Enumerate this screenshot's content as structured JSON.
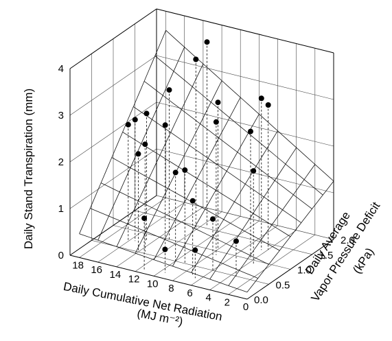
{
  "chart_data": {
    "type": "scatter",
    "subtype": "3d-scatter-with-fitted-surface",
    "title": "",
    "zlabel": "Daily Stand Transpiration (mm)",
    "xlabel": "Daily Cumulative Net Radiation",
    "xlabel_units": "(MJ m⁻²)",
    "ylabel_line1": "Daily Average",
    "ylabel_line2": "Vapor Pressure Deficit",
    "ylabel_line3": "(kPa)",
    "xlim": [
      0,
      19
    ],
    "ylim": [
      0,
      2
    ],
    "zlim": [
      0,
      4
    ],
    "x_ticks": [
      "18",
      "16",
      "14",
      "12",
      "10",
      "8",
      "6",
      "4",
      "2",
      "0"
    ],
    "y_ticks": [
      "0.0",
      "0.5",
      "1.0",
      "1.5",
      "2.0"
    ],
    "z_ticks": [
      "0",
      "1",
      "2",
      "3",
      "4"
    ],
    "grid": true,
    "surface": {
      "model": "z = a + b*x + c*y + d*x*y",
      "a": 0.15,
      "b": 0.02,
      "c": 0.55,
      "d": 0.055,
      "x_grid": [
        0,
        2,
        4,
        6,
        8,
        10,
        12,
        14,
        16,
        18
      ],
      "y_grid": [
        0.0,
        0.25,
        0.5,
        0.75,
        1.0,
        1.25,
        1.5,
        1.75,
        2.0
      ]
    },
    "points": [
      {
        "x": 16,
        "y": 0.7,
        "z": 2.5
      },
      {
        "x": 15.5,
        "y": 0.75,
        "z": 2.6
      },
      {
        "x": 14.5,
        "y": 0.8,
        "z": 2.75
      },
      {
        "x": 14,
        "y": 0.5,
        "z": 2.1
      },
      {
        "x": 13.5,
        "y": 0.55,
        "z": 2.3
      },
      {
        "x": 13,
        "y": 1.0,
        "z": 3.2
      },
      {
        "x": 12.5,
        "y": 0.8,
        "z": 2.6
      },
      {
        "x": 12,
        "y": 1.4,
        "z": 3.65
      },
      {
        "x": 11.5,
        "y": 1.55,
        "z": 3.95
      },
      {
        "x": 11.5,
        "y": 0.1,
        "z": 1.1
      },
      {
        "x": 10,
        "y": 0.5,
        "z": 1.9
      },
      {
        "x": 9,
        "y": 0.5,
        "z": 2.0
      },
      {
        "x": 9.5,
        "y": 0.15,
        "z": 0.5
      },
      {
        "x": 8,
        "y": 1.05,
        "z": 3.15
      },
      {
        "x": 7.5,
        "y": 0.9,
        "z": 2.85
      },
      {
        "x": 7,
        "y": 0.25,
        "z": 1.6
      },
      {
        "x": 6.5,
        "y": 0.2,
        "z": 0.6
      },
      {
        "x": 6,
        "y": 0.5,
        "z": 1.1
      },
      {
        "x": 4.5,
        "y": 1.3,
        "z": 3.25
      },
      {
        "x": 4,
        "y": 1.35,
        "z": 3.1
      },
      {
        "x": 4.5,
        "y": 1.05,
        "z": 2.7
      },
      {
        "x": 3.5,
        "y": 0.9,
        "z": 2.0
      },
      {
        "x": 3.5,
        "y": 0.5,
        "z": 0.75
      }
    ]
  }
}
